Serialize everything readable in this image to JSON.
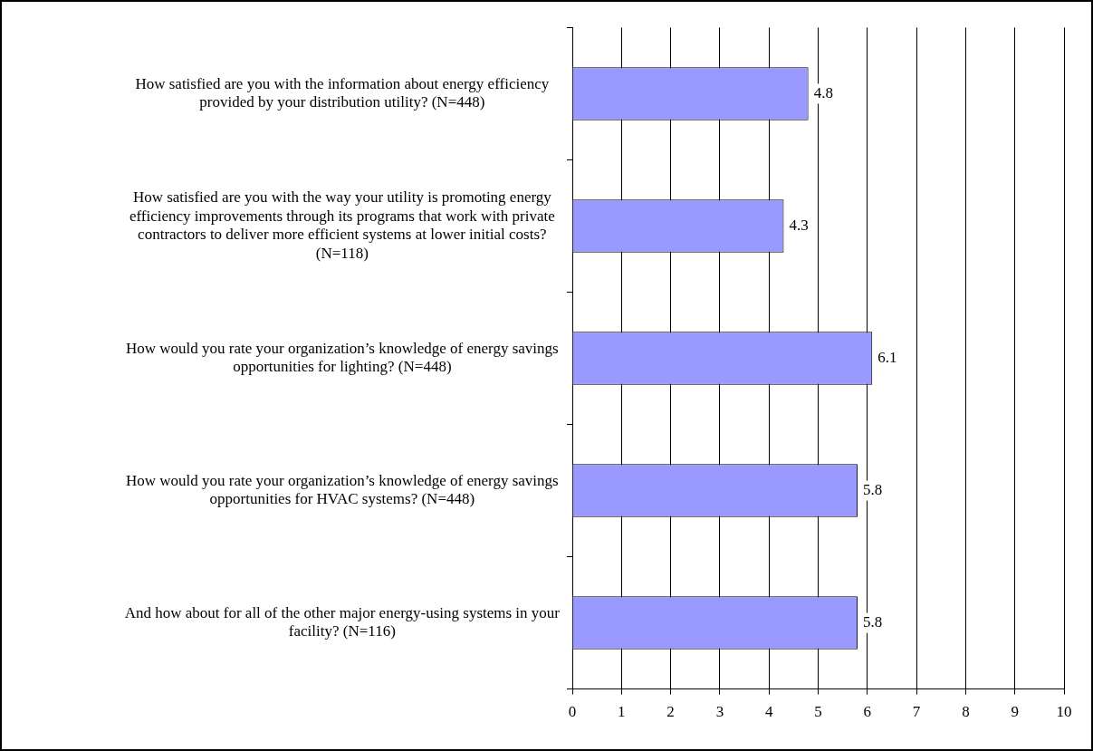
{
  "chart_data": {
    "type": "bar",
    "orientation": "horizontal",
    "categories": [
      "How satisfied are you with the information about energy efficiency provided by your distribution utility? (N=448)",
      "How satisfied are you with the way your utility is promoting energy efficiency improvements through its programs that work with private contractors to deliver more efficient systems at lower initial costs? (N=118)",
      "How would you rate your organization’s knowledge of energy savings opportunities for lighting? (N=448)",
      "How would you rate your organization’s knowledge of energy savings opportunities for HVAC systems? (N=448)",
      "And how about for all of the other major energy-using systems in your facility? (N=116)"
    ],
    "values": [
      4.8,
      4.3,
      6.1,
      5.8,
      5.8
    ],
    "color": "#9999ff",
    "xlim": [
      0,
      10
    ],
    "xticks": [
      0,
      1,
      2,
      3,
      4,
      5,
      6,
      7,
      8,
      9,
      10
    ],
    "grid": "x",
    "data_labels": true,
    "legend": false
  }
}
